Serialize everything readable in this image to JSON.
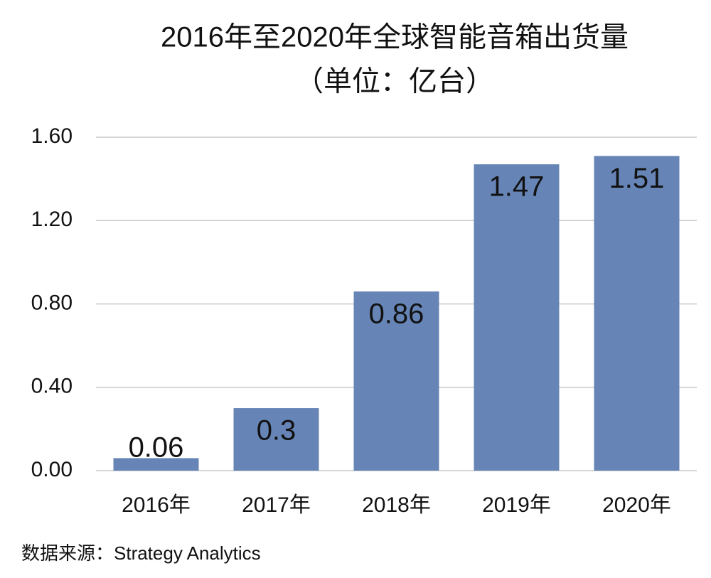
{
  "chart_data": {
    "type": "bar",
    "title": "2016年至2020年全球智能音箱出货量",
    "subtitle": "（单位：亿台）",
    "categories": [
      "2016年",
      "2017年",
      "2018年",
      "2019年",
      "2020年"
    ],
    "values": [
      0.06,
      0.3,
      0.86,
      1.47,
      1.51
    ],
    "color": "#6685b6",
    "ylim": [
      0,
      1.6
    ],
    "yticks": [
      {
        "value": 0,
        "label": "0.00"
      },
      {
        "value": 0.4,
        "label": "0.40"
      },
      {
        "value": 0.8,
        "label": "0.80"
      },
      {
        "value": 1.2,
        "label": "1.20"
      },
      {
        "value": 1.6,
        "label": "1.60"
      }
    ],
    "grid": true,
    "source": "数据来源：Strategy Analytics"
  }
}
